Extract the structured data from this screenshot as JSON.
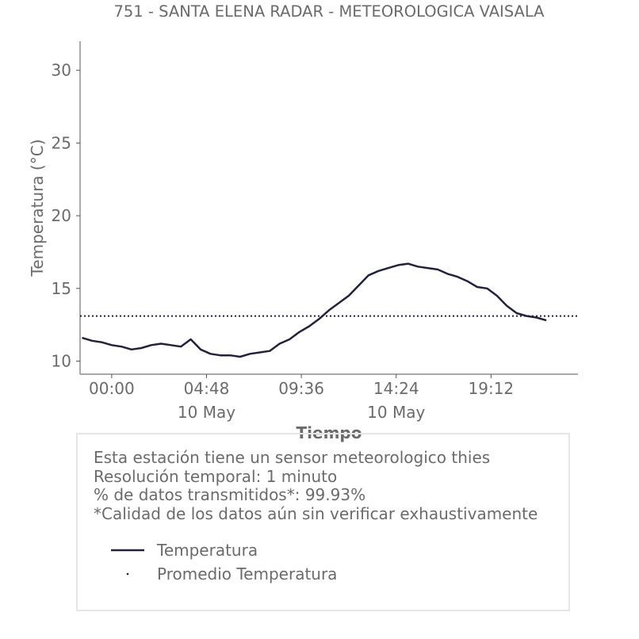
{
  "colors": {
    "series": "#22223f",
    "text": "#6b6b6b",
    "axis": "#555555",
    "box_border": "#e6e6e6"
  },
  "chart_data": {
    "type": "line",
    "title": "751 - SANTA ELENA RADAR - METEOROLOGICA VAISALA",
    "xlabel": "Tiempo",
    "ylabel": "Temperatura (°C)",
    "ylim": [
      9.1,
      32
    ],
    "yticks": [
      10,
      15,
      20,
      25,
      30
    ],
    "xlim": [
      "2024-05-09T22:24",
      "2024-05-10T23:36"
    ],
    "xticks": [
      {
        "t": "2024-05-10T00:00",
        "label": "00:00",
        "sublabel": ""
      },
      {
        "t": "2024-05-10T04:48",
        "label": "04:48",
        "sublabel": "10 May"
      },
      {
        "t": "2024-05-10T09:36",
        "label": "09:36",
        "sublabel": ""
      },
      {
        "t": "2024-05-10T14:24",
        "label": "14:24",
        "sublabel": "10 May"
      },
      {
        "t": "2024-05-10T19:12",
        "label": "19:12",
        "sublabel": ""
      }
    ],
    "grid": false,
    "series": [
      {
        "name": "Temperatura",
        "style": "solid",
        "x": [
          "2024-05-09T22:30",
          "2024-05-09T23:00",
          "2024-05-09T23:30",
          "2024-05-10T00:00",
          "2024-05-10T00:30",
          "2024-05-10T01:00",
          "2024-05-10T01:30",
          "2024-05-10T02:00",
          "2024-05-10T02:30",
          "2024-05-10T03:00",
          "2024-05-10T03:30",
          "2024-05-10T04:00",
          "2024-05-10T04:30",
          "2024-05-10T05:00",
          "2024-05-10T05:30",
          "2024-05-10T06:00",
          "2024-05-10T06:30",
          "2024-05-10T07:00",
          "2024-05-10T07:30",
          "2024-05-10T08:00",
          "2024-05-10T08:30",
          "2024-05-10T09:00",
          "2024-05-10T09:30",
          "2024-05-10T10:00",
          "2024-05-10T10:30",
          "2024-05-10T11:00",
          "2024-05-10T11:30",
          "2024-05-10T12:00",
          "2024-05-10T12:30",
          "2024-05-10T13:00",
          "2024-05-10T13:30",
          "2024-05-10T14:00",
          "2024-05-10T14:30",
          "2024-05-10T15:00",
          "2024-05-10T15:30",
          "2024-05-10T16:00",
          "2024-05-10T16:30",
          "2024-05-10T17:00",
          "2024-05-10T17:30",
          "2024-05-10T18:00",
          "2024-05-10T18:30",
          "2024-05-10T19:00",
          "2024-05-10T19:30",
          "2024-05-10T20:00",
          "2024-05-10T20:30",
          "2024-05-10T21:00",
          "2024-05-10T21:30",
          "2024-05-10T22:00"
        ],
        "values": [
          11.6,
          11.4,
          11.3,
          11.1,
          11.0,
          10.8,
          10.9,
          11.1,
          11.2,
          11.1,
          11.0,
          11.5,
          10.8,
          10.5,
          10.4,
          10.4,
          10.3,
          10.5,
          10.6,
          10.7,
          11.2,
          11.5,
          12.0,
          12.4,
          12.9,
          13.5,
          14.0,
          14.5,
          15.2,
          15.9,
          16.2,
          16.4,
          16.6,
          16.7,
          16.5,
          16.4,
          16.3,
          16.0,
          15.8,
          15.5,
          15.1,
          15.0,
          14.5,
          13.8,
          13.3,
          13.1,
          13.0,
          12.8
        ]
      },
      {
        "name": "Promedio Temperatura",
        "style": "dotted",
        "constant": 13.1
      }
    ],
    "legend": "inside info box, bottom-left"
  },
  "info": {
    "lines": [
      "Esta estación tiene un sensor meteorologico thies",
      "Resolución temporal: 1 minuto",
      "% de datos transmitidos*: 99.93%",
      "*Calidad de los datos aún sin verificar exhaustivamente"
    ]
  }
}
